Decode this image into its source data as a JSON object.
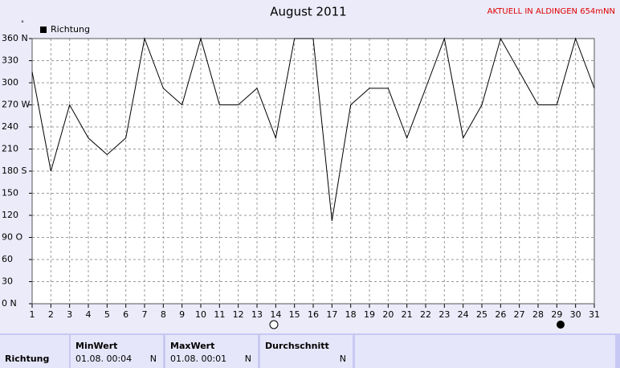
{
  "chart_data": {
    "type": "line",
    "title": "August 2011",
    "annotation": "AKTUELL IN ALDINGEN 654mNN",
    "y_unit": "°",
    "x": [
      1,
      2,
      3,
      4,
      5,
      6,
      7,
      8,
      9,
      10,
      11,
      12,
      13,
      14,
      15,
      16,
      17,
      18,
      19,
      20,
      21,
      22,
      23,
      24,
      25,
      26,
      27,
      28,
      29,
      30,
      31
    ],
    "series": [
      {
        "name": "Richtung",
        "color": "#000000",
        "values": [
          315,
          180,
          270,
          225,
          202.5,
          225,
          360,
          292.5,
          270,
          360,
          270,
          270,
          292.5,
          225,
          360,
          360,
          112.5,
          270,
          292.5,
          292.5,
          225,
          292.5,
          360,
          225,
          270,
          360,
          315,
          270,
          270,
          360,
          292.5
        ]
      }
    ],
    "xlim": [
      1,
      31
    ],
    "xticks": [
      1,
      2,
      3,
      4,
      5,
      6,
      7,
      8,
      9,
      10,
      11,
      12,
      13,
      14,
      15,
      16,
      17,
      18,
      19,
      20,
      21,
      22,
      23,
      24,
      25,
      26,
      27,
      28,
      29,
      30,
      31
    ],
    "ylim": [
      0,
      360
    ],
    "yticks": [
      {
        "value": 0,
        "label": "0 N"
      },
      30,
      60,
      {
        "value": 90,
        "label": "90 O"
      },
      120,
      150,
      {
        "value": 180,
        "label": "180 S"
      },
      210,
      240,
      {
        "value": 270,
        "label": "270 W"
      },
      300,
      330,
      {
        "value": 360,
        "label": "360 N"
      }
    ],
    "grid": true,
    "legend": "upper left"
  },
  "table": {
    "row_label": "Richtung",
    "columns": [
      {
        "header": "MinWert",
        "value": "01.08.  00:04",
        "direction": "N"
      },
      {
        "header": "MaxWert",
        "value": "01.08.  00:01",
        "direction": "N"
      },
      {
        "header": "Durchschnitt",
        "direction": "N"
      }
    ]
  }
}
